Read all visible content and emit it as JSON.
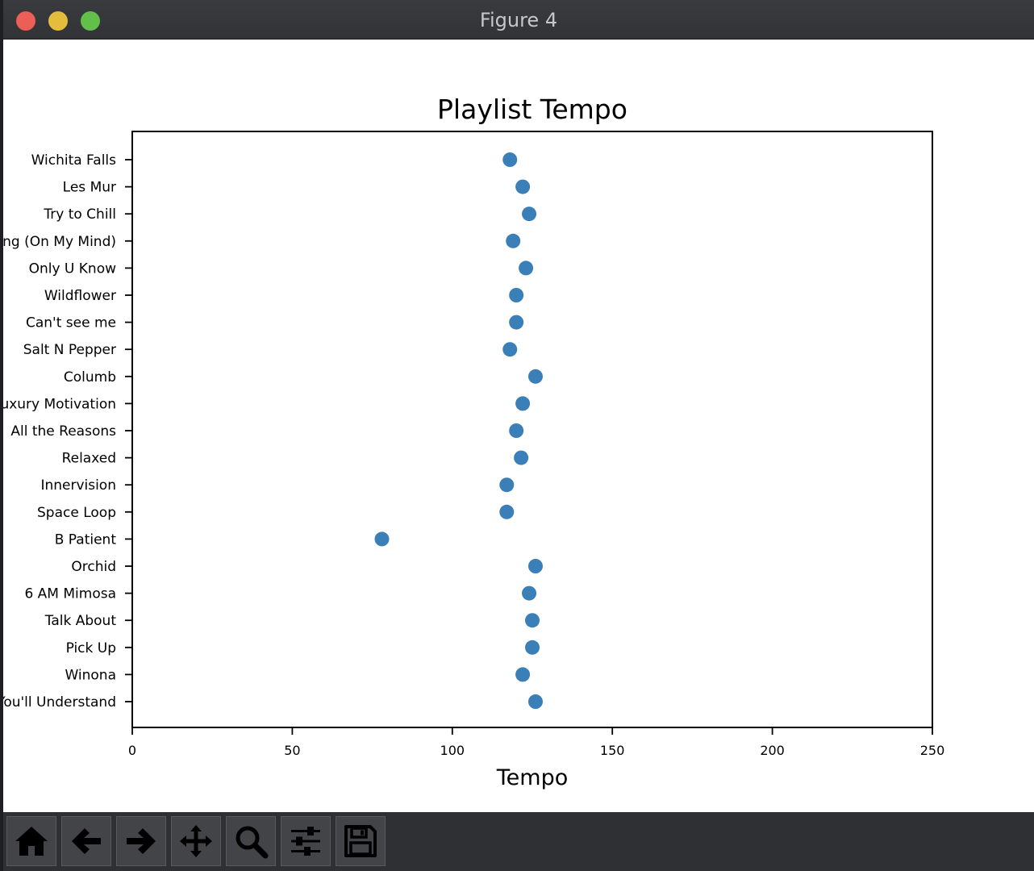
{
  "window": {
    "title": "Figure 4"
  },
  "toolbar": {
    "buttons": [
      {
        "name": "home-button",
        "icon": "home-icon"
      },
      {
        "name": "back-button",
        "icon": "arrow-left-icon"
      },
      {
        "name": "forward-button",
        "icon": "arrow-right-icon"
      },
      {
        "name": "pan-button",
        "icon": "move-icon"
      },
      {
        "name": "zoom-button",
        "icon": "magnifier-icon"
      },
      {
        "name": "configure-subplots-button",
        "icon": "sliders-icon"
      },
      {
        "name": "save-button",
        "icon": "floppy-disk-icon"
      }
    ]
  },
  "chart_data": {
    "type": "scatter",
    "title": "Playlist Tempo",
    "xlabel": "Tempo",
    "ylabel": "",
    "xlim": [
      0,
      250
    ],
    "xticks": [
      0,
      50,
      100,
      150,
      200,
      250
    ],
    "grid": false,
    "marker_color": "#3b7fb8",
    "categories": [
      "Wichita Falls",
      "Les Mur",
      "Try to Chill",
      "ing (On My Mind)",
      "Only U Know",
      "Wildflower",
      "Can't see me",
      "Salt N Pepper",
      "Columb",
      "uxury Motivation",
      "All the Reasons",
      "Relaxed",
      "Innervision",
      "Space Loop",
      "B Patient",
      "Orchid",
      "6 AM Mimosa",
      "Talk About",
      "Pick Up",
      "Winona",
      "You'll Understand"
    ],
    "values": [
      118,
      122,
      124,
      119,
      123,
      120,
      120,
      118,
      126,
      122,
      120,
      121.5,
      117,
      117,
      78,
      126,
      124,
      125,
      125,
      122,
      126
    ]
  }
}
